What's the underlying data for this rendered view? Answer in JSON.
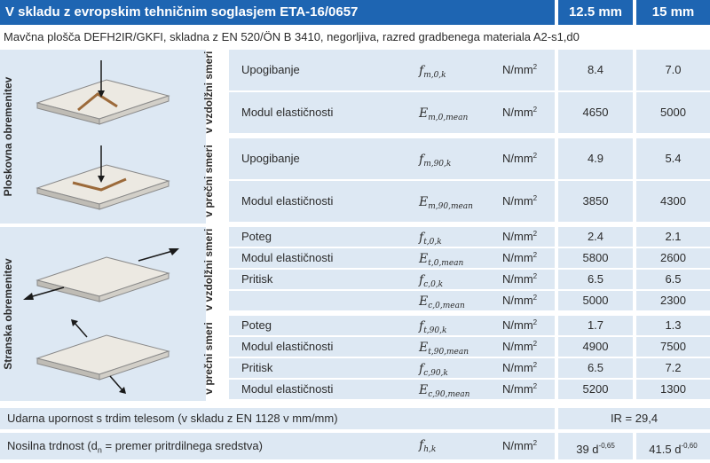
{
  "header": {
    "title": "V skladu z evropskim tehničnim soglasjem ETA-16/0657",
    "col1": "12.5 mm",
    "col2": "15 mm"
  },
  "subtitle": "Mavčna plošča DEFH2IR/GKFI, skladna z EN 520/ÖN B 3410, negorljiva, razred gradbenega materiala A2-s1,d0",
  "groups": {
    "flat": "Ploskovna obremenitev",
    "side": "Stranska obremenitev",
    "along": "v vzdolžni smeri",
    "across": "v prečni smeri"
  },
  "rows": {
    "r1": {
      "label": "Upogibanje",
      "sym": "f",
      "sub": "m,0,k",
      "unit": "N/mm",
      "sup": "2",
      "v1": "8.4",
      "v2": "7.0"
    },
    "r2": {
      "label": "Modul elastičnosti",
      "sym": "E",
      "sub": "m,0,mean",
      "unit": "N/mm",
      "sup": "2",
      "v1": "4650",
      "v2": "5000"
    },
    "r3": {
      "label": "Upogibanje",
      "sym": "f",
      "sub": "m,90,k",
      "unit": "N/mm",
      "sup": "2",
      "v1": "4.9",
      "v2": "5.4"
    },
    "r4": {
      "label": "Modul elastičnosti",
      "sym": "E",
      "sub": "m,90,mean",
      "unit": "N/mm",
      "sup": "2",
      "v1": "3850",
      "v2": "4300"
    },
    "r5": {
      "label": "Poteg",
      "sym": "f",
      "sub": "t,0,k",
      "unit": "N/mm",
      "sup": "2",
      "v1": "2.4",
      "v2": "2.1"
    },
    "r6": {
      "label": "Modul elastičnosti",
      "sym": "E",
      "sub": "t,0,mean",
      "unit": "N/mm",
      "sup": "2",
      "v1": "5800",
      "v2": "2600"
    },
    "r7": {
      "label": "Pritisk",
      "sym": "f",
      "sub": "c,0,k",
      "unit": "N/mm",
      "sup": "2",
      "v1": "6.5",
      "v2": "6.5"
    },
    "r8": {
      "label": "",
      "sym": "E",
      "sub": "c,0,mean",
      "unit": "N/mm",
      "sup": "2",
      "v1": "5000",
      "v2": "2300"
    },
    "r9": {
      "label": "Poteg",
      "sym": "f",
      "sub": "t,90,k",
      "unit": "N/mm",
      "sup": "2",
      "v1": "1.7",
      "v2": "1.3"
    },
    "r10": {
      "label": "Modul elastičnosti",
      "sym": "E",
      "sub": "t,90,mean",
      "unit": "N/mm",
      "sup": "2",
      "v1": "4900",
      "v2": "7500"
    },
    "r11": {
      "label": "Pritisk",
      "sym": "f",
      "sub": "c,90,k",
      "unit": "N/mm",
      "sup": "2",
      "v1": "6.5",
      "v2": "7.2"
    },
    "r12": {
      "label": "Modul elastičnosti",
      "sym": "E",
      "sub": "c,90,mean",
      "unit": "N/mm",
      "sup": "2",
      "v1": "5200",
      "v2": "1300"
    }
  },
  "impact": {
    "label": "Udarna upornost s trdim telesom (v skladu z EN 1128 v mm/mm)",
    "value": "IR = 29,4"
  },
  "bearing": {
    "label_pre": "Nosilna trdnost (d",
    "label_sub": "n",
    "label_post": " = premer pritrdilnega sredstva)",
    "sym": "f",
    "sub": "h,k",
    "unit": "N/mm",
    "sup": "2",
    "v1_base": "39 d",
    "v1_exp": "-0,65",
    "v2_base": "41.5 d",
    "v2_exp": "-0,60"
  },
  "colors": {
    "header": "#1e65b2",
    "cell": "#dde8f3",
    "arrow": "#1a1a1a",
    "plate_mark": "#9c6a3a"
  }
}
